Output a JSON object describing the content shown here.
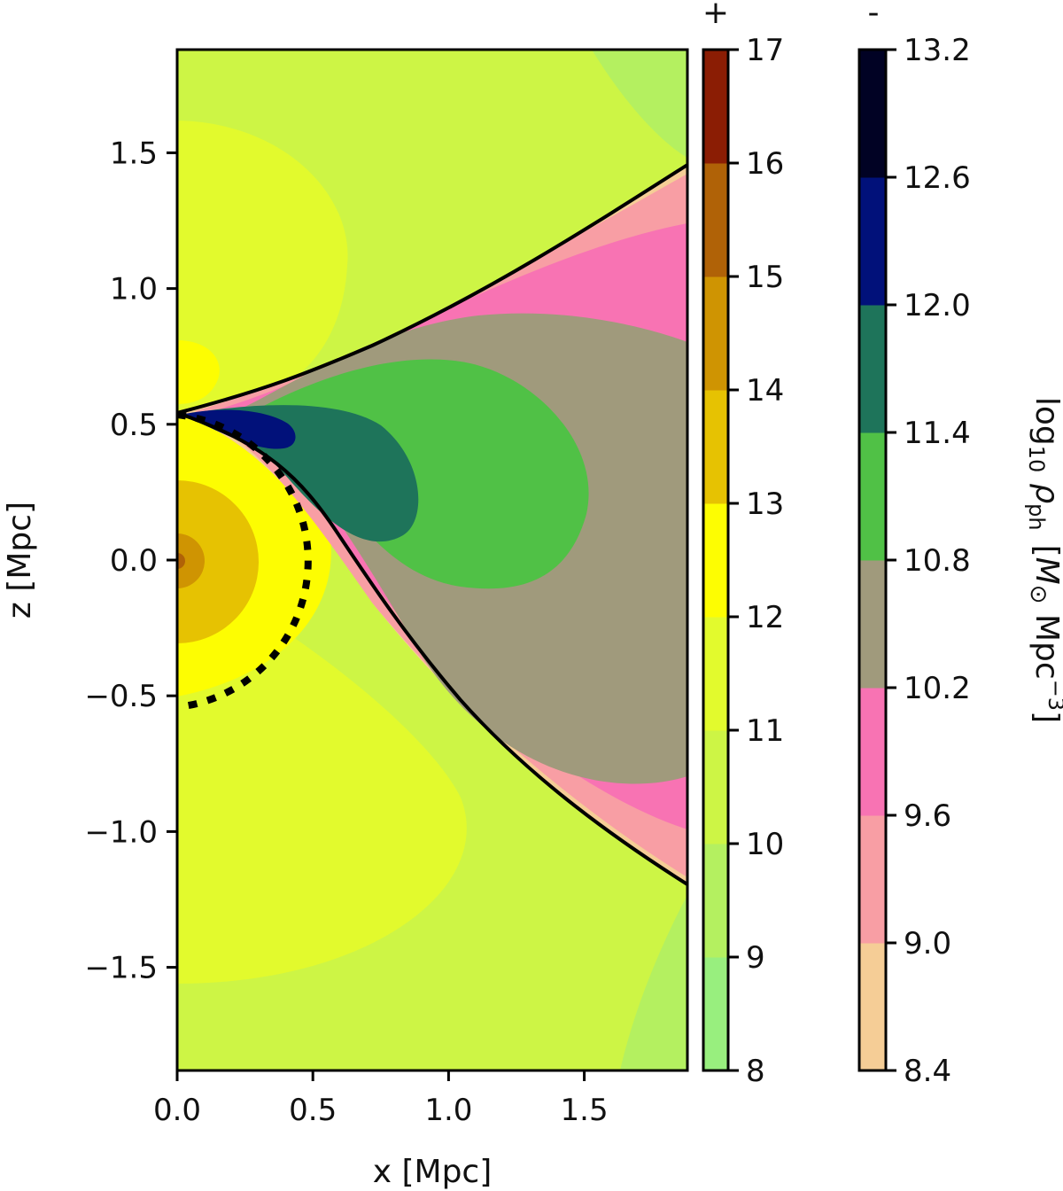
{
  "chart_data": {
    "type": "heatmap",
    "xlabel": "x [Mpc]",
    "ylabel": "z [Mpc]",
    "xlim": [
      0.0,
      1.88
    ],
    "ylim": [
      -1.88,
      1.88
    ],
    "x_ticks": [
      0.0,
      0.5,
      1.0,
      1.5
    ],
    "x_tick_labels": [
      "0.0",
      "0.5",
      "1.0",
      "1.5"
    ],
    "y_ticks": [
      -1.5,
      -1.0,
      -0.5,
      0.0,
      0.5,
      1.0,
      1.5
    ],
    "y_tick_labels": [
      "−1.5",
      "−1.0",
      "−0.5",
      "0.0",
      "0.5",
      "1.0",
      "1.5"
    ],
    "grid": false,
    "dashed_circle_radius_mpc": 0.54,
    "colorbars": [
      {
        "sign_label": "+",
        "ticks": [
          8,
          9,
          10,
          11,
          12,
          13,
          14,
          15,
          16,
          17
        ],
        "tick_labels": [
          "8",
          "9",
          "10",
          "11",
          "12",
          "13",
          "14",
          "15",
          "16",
          "17"
        ],
        "colors": [
          "#98ef7e",
          "#b4f060",
          "#cdf545",
          "#e2fa2d",
          "#fdfd02",
          "#e6c202",
          "#cf9402",
          "#b06207",
          "#8b1d04"
        ]
      },
      {
        "sign_label": "-",
        "ticks": [
          8.4,
          9.0,
          9.6,
          10.2,
          10.8,
          11.4,
          12.0,
          12.6,
          13.2
        ],
        "tick_labels": [
          "8.4",
          "9.0",
          "9.6",
          "10.2",
          "10.8",
          "11.4",
          "12.0",
          "12.6",
          "13.2"
        ],
        "colors": [
          "#f5cd96",
          "#f89ea4",
          "#f873b3",
          "#a09a7c",
          "#50c146",
          "#1e745a",
          "#01117a",
          "#010224"
        ],
        "label": "log$_{10}$ $\\rho_{\\rm ph}$ [$M_\\odot$ Mpc$^{-3}$]",
        "label_parts": {
          "a": "log",
          "b": "10",
          "c": "ρ",
          "d": "ph",
          "e": "[",
          "f": "M",
          "g": "⊙",
          "h": " Mpc",
          "i": "−3",
          "j": "]"
        }
      }
    ]
  }
}
